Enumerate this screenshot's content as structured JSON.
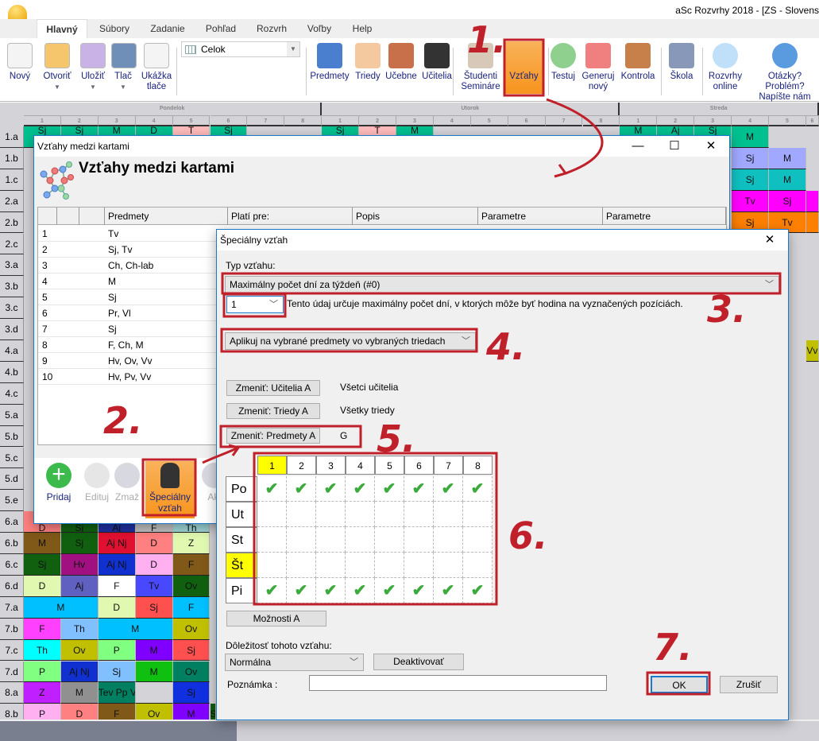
{
  "app": {
    "title": "aSc Rozvrhy 2018  - [ZS - Slovens"
  },
  "tabs": [
    "Hlavný",
    "Súbory",
    "Zadanie",
    "Pohľad",
    "Rozvrh",
    "Voľby",
    "Help"
  ],
  "ribbon": {
    "left": [
      {
        "label": "Nový",
        "icon": "new-file-icon"
      },
      {
        "label": "Otvoriť",
        "icon": "folder-icon",
        "dd": "▼"
      },
      {
        "label": "Uložiť",
        "icon": "save-icon",
        "dd": "▼"
      },
      {
        "label": "Tlač",
        "icon": "printer-icon",
        "dd": "▼"
      },
      {
        "label": "Ukážka tlače",
        "icon": "print-preview-icon"
      }
    ],
    "view_select": "Celok",
    "right": [
      {
        "label": "Predmety",
        "icon": "book-icon"
      },
      {
        "label": "Triedy",
        "icon": "people-icon"
      },
      {
        "label": "Učebne",
        "icon": "door-icon"
      },
      {
        "label": "Učitelia",
        "icon": "graduation-cap-icon"
      },
      {
        "label": "Študenti Semináre",
        "icon": "student-icon"
      },
      {
        "label": "Vzťahy",
        "icon": "relations-icon",
        "active": true
      },
      {
        "label": "Testuj",
        "icon": "check-badge-icon"
      },
      {
        "label": "Generuj nový",
        "icon": "siren-icon"
      },
      {
        "label": "Kontrola",
        "icon": "gavel-icon"
      },
      {
        "label": "Škola",
        "icon": "school-icon"
      },
      {
        "label": "Rozvrhy online",
        "icon": "cloud-icon"
      },
      {
        "label": "Otázky? Problém? Napíšte nám",
        "icon": "help-icon"
      }
    ]
  },
  "timetable": {
    "days": [
      "Pondelok",
      "Utorok",
      "Streda"
    ],
    "periods": [
      "1",
      "2",
      "3",
      "4",
      "5",
      "6",
      "7",
      "8"
    ],
    "classes": [
      "1.a",
      "1.b",
      "1.c",
      "2.a",
      "2.b",
      "2.c",
      "3.a",
      "3.b",
      "3.c",
      "3.d",
      "4.a",
      "4.b",
      "4.c",
      "5.a",
      "5.b",
      "5.c",
      "5.d",
      "5.e",
      "6.a",
      "6.b",
      "6.c",
      "6.d",
      "7.a",
      "7.b",
      "7.c",
      "7.d",
      "8.a",
      "8.b"
    ],
    "cells": [
      {
        "r": 0,
        "c": 0,
        "t": "Sj",
        "bg": "#00c090"
      },
      {
        "r": 0,
        "c": 1,
        "t": "Sj",
        "bg": "#00c090"
      },
      {
        "r": 0,
        "c": 2,
        "t": "M",
        "bg": "#00c090"
      },
      {
        "r": 0,
        "c": 3,
        "t": "D",
        "bg": "#00c090"
      },
      {
        "r": 0,
        "c": 4,
        "t": "T",
        "bg": "#ffbbbb"
      },
      {
        "r": 0,
        "c": 5,
        "t": "Sj",
        "bg": "#00c090"
      },
      {
        "r": 0,
        "c": 8,
        "t": "Sj",
        "bg": "#00c090"
      },
      {
        "r": 0,
        "c": 9,
        "t": "T",
        "bg": "#ffbbbb"
      },
      {
        "r": 0,
        "c": 10,
        "t": "M",
        "bg": "#00c090"
      },
      {
        "r": 0,
        "c": 16,
        "t": "M",
        "bg": "#00c090"
      },
      {
        "r": 0,
        "c": 17,
        "t": "Aj",
        "bg": "#00c090"
      },
      {
        "r": 0,
        "c": 18,
        "t": "Sj",
        "bg": "#00c090"
      },
      {
        "r": 0,
        "c": 19,
        "t": "M",
        "bg": "#00c090"
      },
      {
        "r": 1,
        "c": 19,
        "t": "Sj",
        "bg": "#a0a8ff"
      },
      {
        "r": 1,
        "c": 20,
        "t": "M",
        "bg": "#a0a8ff"
      },
      {
        "r": 2,
        "c": 19,
        "t": "Sj",
        "bg": "#10c0c0"
      },
      {
        "r": 2,
        "c": 20,
        "t": "M",
        "bg": "#10c0c0"
      },
      {
        "r": 3,
        "c": 19,
        "t": "Tv",
        "bg": "#ff00ff"
      },
      {
        "r": 3,
        "c": 20,
        "t": "Sj",
        "bg": "#ff00ff"
      },
      {
        "r": 3,
        "c": 21,
        "t": "",
        "bg": "#ff00ff"
      },
      {
        "r": 4,
        "c": 19,
        "t": "Sj",
        "bg": "#ff8000"
      },
      {
        "r": 4,
        "c": 20,
        "t": "Tv",
        "bg": "#ff8000"
      },
      {
        "r": 4,
        "c": 21,
        "t": "",
        "bg": "#ff8000"
      },
      {
        "r": 10,
        "c": 21,
        "t": "Vv",
        "bg": "#c0c000"
      },
      {
        "r": 18,
        "c": 0,
        "t": "D",
        "bg": "#ff8080"
      },
      {
        "r": 18,
        "c": 1,
        "t": "Sj",
        "bg": "#106010"
      },
      {
        "r": 18,
        "c": 2,
        "t": "Aj",
        "bg": "#2030a0"
      },
      {
        "r": 18,
        "c": 3,
        "t": "F",
        "bg": "#c0c0c0"
      },
      {
        "r": 18,
        "c": 4,
        "t": "Th",
        "bg": "#a0d8d8"
      },
      {
        "r": 19,
        "c": 0,
        "t": "M",
        "bg": "#805818"
      },
      {
        "r": 19,
        "c": 1,
        "t": "Sj",
        "bg": "#106010"
      },
      {
        "r": 19,
        "c": 2,
        "t": "Aj Nj",
        "bg": "#e01030"
      },
      {
        "r": 19,
        "c": 3,
        "t": "D",
        "bg": "#ff8080"
      },
      {
        "r": 19,
        "c": 4,
        "t": "Z",
        "bg": "#e0f8b0"
      },
      {
        "r": 20,
        "c": 0,
        "t": "Sj",
        "bg": "#106010"
      },
      {
        "r": 20,
        "c": 1,
        "t": "Hv",
        "bg": "#a01080"
      },
      {
        "r": 20,
        "c": 2,
        "t": "Aj Nj",
        "bg": "#1030d0"
      },
      {
        "r": 20,
        "c": 3,
        "t": "D",
        "bg": "#ffb0f0"
      },
      {
        "r": 20,
        "c": 4,
        "t": "F",
        "bg": "#805818"
      },
      {
        "r": 21,
        "c": 0,
        "t": "D",
        "bg": "#e0f8b0"
      },
      {
        "r": 21,
        "c": 1,
        "t": "Aj",
        "bg": "#6060c0"
      },
      {
        "r": 21,
        "c": 2,
        "t": "F",
        "bg": "#ffffff"
      },
      {
        "r": 21,
        "c": 3,
        "t": "Tv",
        "bg": "#4848ff"
      },
      {
        "r": 21,
        "c": 4,
        "t": "Ov",
        "bg": "#106010"
      },
      {
        "r": 22,
        "c": 0,
        "t": "M",
        "bg": "#00c0ff",
        "span": 2
      },
      {
        "r": 22,
        "c": 2,
        "t": "D",
        "bg": "#e0f8b0"
      },
      {
        "r": 22,
        "c": 3,
        "t": "Sj",
        "bg": "#ff5050"
      },
      {
        "r": 22,
        "c": 4,
        "t": "F",
        "bg": "#00c0ff"
      },
      {
        "r": 23,
        "c": 0,
        "t": "F",
        "bg": "#ff40ff"
      },
      {
        "r": 23,
        "c": 1,
        "t": "Th",
        "bg": "#80c0ff"
      },
      {
        "r": 23,
        "c": 2,
        "t": "M",
        "bg": "#00c0ff",
        "span": 2
      },
      {
        "r": 23,
        "c": 4,
        "t": "Ov",
        "bg": "#c0c000"
      },
      {
        "r": 24,
        "c": 0,
        "t": "Th",
        "bg": "#00ffff"
      },
      {
        "r": 24,
        "c": 1,
        "t": "Ov",
        "bg": "#c0c000"
      },
      {
        "r": 24,
        "c": 2,
        "t": "P",
        "bg": "#80ff80"
      },
      {
        "r": 24,
        "c": 3,
        "t": "M",
        "bg": "#8000ff"
      },
      {
        "r": 24,
        "c": 4,
        "t": "Sj",
        "bg": "#ff5050"
      },
      {
        "r": 25,
        "c": 0,
        "t": "P",
        "bg": "#80ff80"
      },
      {
        "r": 25,
        "c": 1,
        "t": "Aj Nj",
        "bg": "#1030d0"
      },
      {
        "r": 25,
        "c": 2,
        "t": "Sj",
        "bg": "#80c0ff"
      },
      {
        "r": 25,
        "c": 3,
        "t": "M",
        "bg": "#10c010"
      },
      {
        "r": 25,
        "c": 4,
        "t": "Ov",
        "bg": "#008060"
      },
      {
        "r": 26,
        "c": 0,
        "t": "Z",
        "bg": "#c020ff"
      },
      {
        "r": 26,
        "c": 1,
        "t": "M",
        "bg": "#909090"
      },
      {
        "r": 26,
        "c": 2,
        "t": "Tev Pp Vv",
        "bg": "#008060"
      },
      {
        "r": 26,
        "c": 3,
        "t": "",
        "bg": "#d4d4d8"
      },
      {
        "r": 26,
        "c": 4,
        "t": "Sj",
        "bg": "#1030e0"
      },
      {
        "r": 27,
        "c": 0,
        "t": "P",
        "bg": "#ffb0f0"
      },
      {
        "r": 27,
        "c": 1,
        "t": "D",
        "bg": "#ff8080"
      },
      {
        "r": 27,
        "c": 2,
        "t": "F",
        "bg": "#805818"
      },
      {
        "r": 27,
        "c": 3,
        "t": "Ov",
        "bg": "#c0c000"
      },
      {
        "r": 27,
        "c": 4,
        "t": "M",
        "bg": "#8000ff"
      },
      {
        "r": 27,
        "c": 5,
        "t": "Sj",
        "bg": "#106010"
      }
    ]
  },
  "relations_window": {
    "title": "Vzťahy medzi kartami",
    "heading": "Vzťahy medzi kartami",
    "columns": [
      "",
      "",
      "",
      "Predmety",
      "Platí pre:",
      "Popis",
      "Parametre",
      "Parametre"
    ],
    "rows": [
      {
        "n": "1",
        "subj": "Tv"
      },
      {
        "n": "2",
        "subj": "Sj, Tv"
      },
      {
        "n": "3",
        "subj": "Ch, Ch-lab"
      },
      {
        "n": "4",
        "subj": "M"
      },
      {
        "n": "5",
        "subj": "Sj"
      },
      {
        "n": "6",
        "subj": "Pr, Vl"
      },
      {
        "n": "7",
        "subj": "Sj"
      },
      {
        "n": "8",
        "subj": "F, Ch, M"
      },
      {
        "n": "9",
        "subj": "Hv, Ov, Vv"
      },
      {
        "n": "10",
        "subj": "Hv, Pv, Vv"
      }
    ],
    "tools": [
      {
        "label": "Pridaj",
        "icon": "plus-circle-icon",
        "enabled": true
      },
      {
        "label": "Edituj",
        "icon": "pencil-icon",
        "enabled": false
      },
      {
        "label": "Zmaž",
        "icon": "minus-circle-icon",
        "enabled": false
      },
      {
        "label": "Špeciálny vzťah",
        "icon": "chess-knight-plus-icon",
        "enabled": true,
        "active": true
      },
      {
        "label": "Akt",
        "icon": "activate-icon",
        "enabled": false
      }
    ]
  },
  "special_dialog": {
    "title": "Špeciálny vzťah",
    "type_label": "Typ vzťahu:",
    "type_value": "Maximálny počet dní za týždeň (#0)",
    "count_value": "1",
    "count_hint": "Tento údaj určuje maximálny počet dní, v ktorých môže byť hodina na vyznačených pozíciách.",
    "apply_value": "Aplikuj na vybrané predmety vo vybraných triedach",
    "teachers_btn": "Zmeniť: Učitelia A",
    "teachers_val": "Všetci učitelia",
    "classes_btn": "Zmeniť: Triedy A",
    "classes_val": "Všetky triedy",
    "subjects_btn": "Zmeniť: Predmety A",
    "subjects_val": "G",
    "periods": [
      "1",
      "2",
      "3",
      "4",
      "5",
      "6",
      "7",
      "8"
    ],
    "highlight_period": "1",
    "days": [
      "Po",
      "Ut",
      "St",
      "Št",
      "Pi"
    ],
    "highlight_day": "Št",
    "checked": [
      [
        1,
        1,
        1,
        1,
        1,
        1,
        1,
        1
      ],
      [
        0,
        0,
        0,
        0,
        0,
        0,
        0,
        0
      ],
      [
        0,
        0,
        0,
        0,
        0,
        0,
        0,
        0
      ],
      [
        0,
        0,
        0,
        0,
        0,
        0,
        0,
        0
      ],
      [
        1,
        1,
        1,
        1,
        1,
        1,
        1,
        1
      ]
    ],
    "options_btn": "Možnosti A",
    "importance_label": "Dôležitosť tohoto vzťahu:",
    "importance_value": "Normálna",
    "deactivate_btn": "Deaktivovať",
    "note_label": "Poznámka :",
    "note_value": "",
    "ok": "OK",
    "cancel": "Zrušiť"
  },
  "annotations": [
    "1.",
    "2.",
    "3.",
    "4.",
    "5.",
    "6.",
    "7."
  ],
  "colors": {
    "accent": "#f7941d",
    "annotation": "#c0202a",
    "highlight": "#ffff00",
    "check": "#3caa3c"
  }
}
